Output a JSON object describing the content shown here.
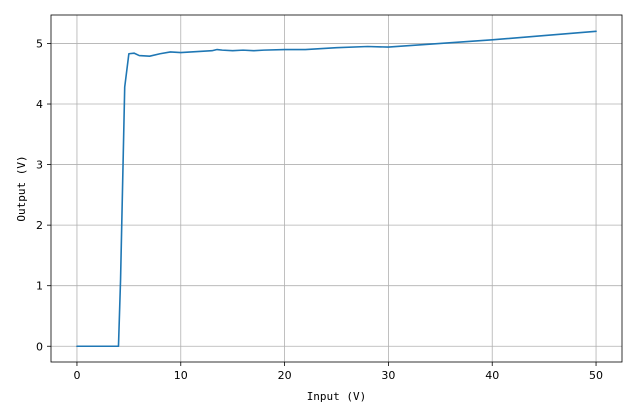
{
  "chart_data": {
    "type": "line",
    "title": "",
    "xlabel": "Input (V)",
    "ylabel": "Output (V)",
    "xlim": [
      -2.5,
      52.5
    ],
    "ylim": [
      -0.26,
      5.47
    ],
    "grid": true,
    "xticks": [
      0,
      10,
      20,
      30,
      40,
      50
    ],
    "yticks": [
      0,
      1,
      2,
      3,
      4,
      5
    ],
    "series": [
      {
        "color": "#1f77b4",
        "x": [
          0,
          1,
          2,
          3,
          4,
          4.2,
          4.6,
          5,
          5.5,
          6,
          7,
          8,
          9,
          10,
          11,
          12,
          13,
          13.5,
          14,
          15,
          16,
          17,
          18,
          20,
          22,
          25,
          28,
          30,
          35,
          40,
          45,
          50
        ],
        "y": [
          0,
          0,
          0,
          0,
          0,
          1.1,
          4.28,
          4.83,
          4.84,
          4.8,
          4.79,
          4.83,
          4.86,
          4.85,
          4.86,
          4.87,
          4.88,
          4.9,
          4.89,
          4.88,
          4.89,
          4.88,
          4.89,
          4.9,
          4.9,
          4.93,
          4.95,
          4.94,
          5.0,
          5.06,
          5.13,
          5.2
        ]
      }
    ]
  }
}
